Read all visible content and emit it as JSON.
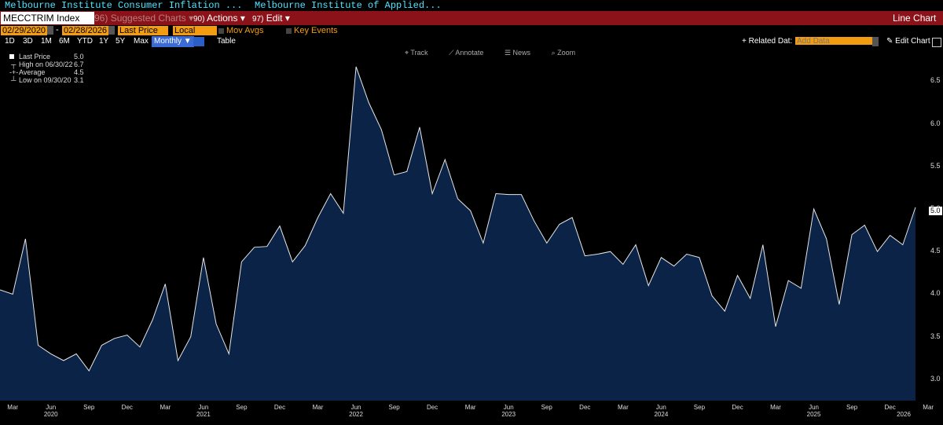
{
  "title_bar": {
    "left_title": "Melbourne Institute Consumer Inflation ...",
    "right_title": "Melbourne Institute of Applied..."
  },
  "toolbar": {
    "security": "MECCTRIM Index",
    "suggested_num": "96)",
    "suggested": "Suggested Charts",
    "actions_num": "90)",
    "actions": "Actions",
    "edit_num": "97)",
    "edit": "Edit",
    "chart_type": "Line Chart"
  },
  "controls": {
    "start_date": "02/29/2020",
    "end_date": "02/28/2026",
    "field": "Last Price",
    "currency": "Local CCY",
    "mov_avgs": "Mov Avgs",
    "key_events": "Key Events"
  },
  "periods": [
    "1D",
    "3D",
    "1M",
    "6M",
    "YTD",
    "1Y",
    "5Y",
    "Max"
  ],
  "frequency": "Monthly",
  "table_label": "Table",
  "related": {
    "label": "Related Dat",
    "placeholder": "Add Data",
    "edit_chart": "Edit Chart"
  },
  "plot_tools": [
    "Track",
    "Annotate",
    "News",
    "Zoom"
  ],
  "legend": {
    "last_label": "Last Price",
    "last_value": "5.0",
    "high_label": "High on 06/30/22",
    "high_value": "6.7",
    "avg_label": "Average",
    "avg_value": "4.5",
    "low_label": "Low on 09/30/20",
    "low_value": "3.1"
  },
  "colors": {
    "fill": "#0b2347",
    "line": "#e6e6e6",
    "toolbar_red": "#8b1219",
    "accent_orange": "#f39c12"
  },
  "chart_data": {
    "type": "area",
    "title": "MECCTRIM Index",
    "ylim": [
      2.75,
      6.9
    ],
    "yticks": [
      "3.0",
      "3.5",
      "4.0",
      "4.5",
      "5.0",
      "5.5",
      "6.0",
      "6.5"
    ],
    "x_month_labels": [
      "Mar",
      "Jun",
      "Sep",
      "Dec",
      "Mar",
      "Jun",
      "Sep",
      "Dec",
      "Mar",
      "Jun",
      "Sep",
      "Dec",
      "Mar",
      "Jun",
      "Sep",
      "Dec",
      "Mar",
      "Jun",
      "Sep",
      "Dec",
      "Mar",
      "Jun",
      "Sep",
      "Dec",
      "Mar"
    ],
    "x_year_labels": [
      "2020",
      "2021",
      "2022",
      "2023",
      "2024",
      "2025",
      "2026"
    ],
    "start": "2020-02",
    "values": [
      4.05,
      4.0,
      4.65,
      3.4,
      3.3,
      3.22,
      3.3,
      3.1,
      3.4,
      3.48,
      3.52,
      3.38,
      3.7,
      4.12,
      3.22,
      3.5,
      4.43,
      3.65,
      3.3,
      4.38,
      4.55,
      4.56,
      4.8,
      4.38,
      4.57,
      4.9,
      5.18,
      4.95,
      6.67,
      6.25,
      5.93,
      5.4,
      5.44,
      5.96,
      5.18,
      5.58,
      5.12,
      4.98,
      4.6,
      5.18,
      5.17,
      5.17,
      4.86,
      4.6,
      4.82,
      4.9,
      4.45,
      4.47,
      4.5,
      4.35,
      4.58,
      4.1,
      4.43,
      4.33,
      4.47,
      4.43,
      3.98,
      3.8,
      4.22,
      3.95,
      4.58,
      3.62,
      4.16,
      4.07,
      5.0,
      4.65,
      3.88,
      4.7,
      4.81,
      4.5,
      4.69,
      4.58,
      5.02
    ],
    "last_value_label": "5.0"
  }
}
